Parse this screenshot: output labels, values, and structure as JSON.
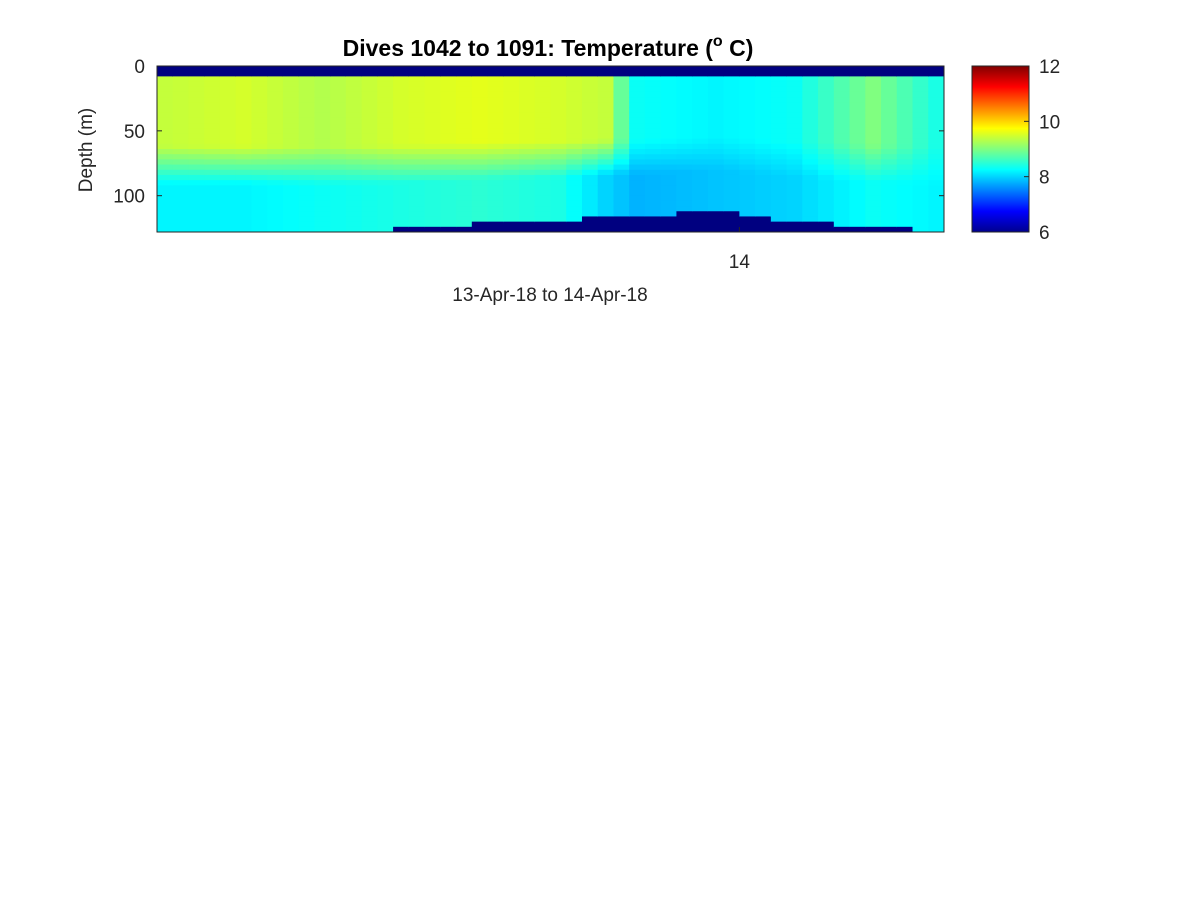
{
  "chart_data": {
    "type": "heatmap",
    "title": "Dives 1042 to 1091: Temperature (",
    "title_superscript": "o",
    "title_end": " C)",
    "xlabel": "13-Apr-18 to 14-Apr-18",
    "ylabel": "Depth (m)",
    "x_ticks": [
      "14"
    ],
    "y_ticks": [
      "0",
      "50",
      "100"
    ],
    "ylim": [
      0,
      128
    ],
    "y_reversed": true,
    "x_range_dives": [
      1042,
      1091
    ],
    "x_tick_position_dive": 1079,
    "colormap": "jet",
    "colorbar": {
      "range": [
        6,
        12
      ],
      "ticks": [
        "12",
        "10",
        "8",
        "6"
      ],
      "tick_values": [
        12,
        10,
        8,
        6
      ]
    },
    "profile_columns": [
      {
        "dive_index": 0,
        "upper_temp": 9.4,
        "lower_temp": 8.2,
        "surface_depth": 6,
        "floor_depth": 125
      },
      {
        "dive_index": 5,
        "upper_temp": 9.5,
        "lower_temp": 8.2,
        "surface_depth": 6,
        "floor_depth": 125
      },
      {
        "dive_index": 10,
        "upper_temp": 9.3,
        "lower_temp": 8.3,
        "surface_depth": 6,
        "floor_depth": 126
      },
      {
        "dive_index": 15,
        "upper_temp": 9.5,
        "lower_temp": 8.4,
        "surface_depth": 6,
        "floor_depth": 124
      },
      {
        "dive_index": 20,
        "upper_temp": 9.6,
        "lower_temp": 8.5,
        "surface_depth": 6,
        "floor_depth": 120
      },
      {
        "dive_index": 25,
        "upper_temp": 9.5,
        "lower_temp": 8.4,
        "surface_depth": 6,
        "floor_depth": 118
      },
      {
        "dive_index": 28,
        "upper_temp": 9.4,
        "lower_temp": 8.0,
        "surface_depth": 6,
        "floor_depth": 115
      },
      {
        "dive_index": 30,
        "upper_temp": 8.3,
        "lower_temp": 7.8,
        "surface_depth": 6,
        "floor_depth": 115
      },
      {
        "dive_index": 35,
        "upper_temp": 8.2,
        "lower_temp": 7.9,
        "surface_depth": 6,
        "floor_depth": 110
      },
      {
        "dive_index": 40,
        "upper_temp": 8.3,
        "lower_temp": 8.0,
        "surface_depth": 6,
        "floor_depth": 118
      },
      {
        "dive_index": 45,
        "upper_temp": 9.0,
        "lower_temp": 8.3,
        "surface_depth": 6,
        "floor_depth": 123
      },
      {
        "dive_index": 49,
        "upper_temp": 8.4,
        "lower_temp": 8.2,
        "surface_depth": 6,
        "floor_depth": 125
      }
    ]
  }
}
